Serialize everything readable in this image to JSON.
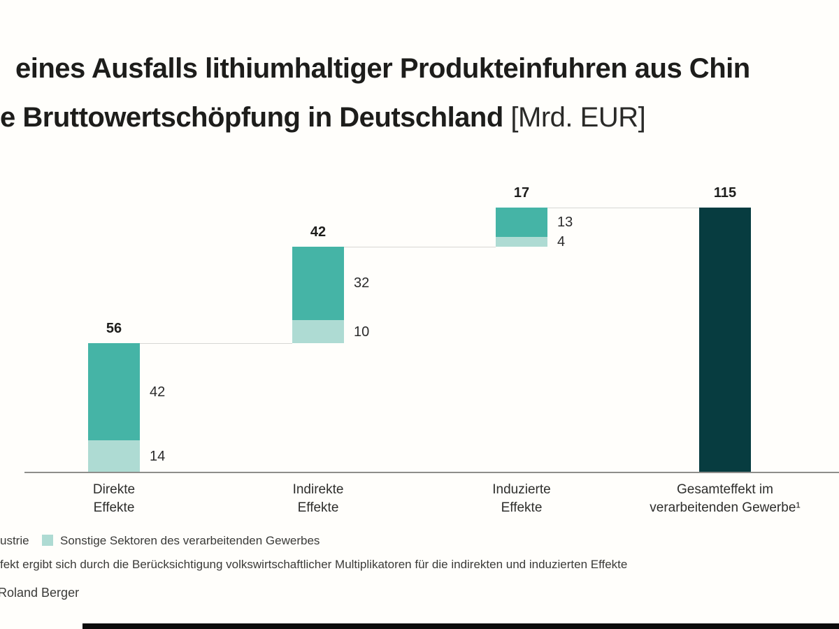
{
  "title": {
    "line1": "eines Ausfalls lithiumhaltiger Produkteinfuhren aus Chin",
    "line2_bold": "e Bruttowertschöpfung in Deutschland ",
    "line2_light": "[Mrd. EUR]"
  },
  "chart_data": {
    "type": "bar",
    "subtype": "waterfall-stacked",
    "unit": "Mrd. EUR",
    "categories": [
      "Direkte Effekte",
      "Indirekte Effekte",
      "Induzierte Effekte",
      "Gesamteffekt im verarbeitenden Gewerbe¹"
    ],
    "columns": [
      {
        "label_lines": [
          "Direkte",
          "Effekte"
        ],
        "base": 0,
        "total": 56,
        "segments": [
          {
            "series": "teal",
            "value": 42
          },
          {
            "series": "light",
            "value": 14
          }
        ]
      },
      {
        "label_lines": [
          "Indirekte",
          "Effekte"
        ],
        "base": 56,
        "total": 42,
        "segments": [
          {
            "series": "teal",
            "value": 32
          },
          {
            "series": "light",
            "value": 10
          }
        ]
      },
      {
        "label_lines": [
          "Induzierte",
          "Effekte"
        ],
        "base": 98,
        "total": 17,
        "segments": [
          {
            "series": "teal",
            "value": 13
          },
          {
            "series": "light",
            "value": 4
          }
        ]
      },
      {
        "label_lines": [
          "Gesamteffekt im",
          "verarbeitenden Gewerbe¹"
        ],
        "base": 0,
        "total": 115,
        "solid": true
      }
    ],
    "colors": {
      "segment_teal": "#45b4a6",
      "segment_light": "#aedbd3",
      "total_bar": "#073c40",
      "axis": "#8e8e8b",
      "connector": "#d7d7d4"
    },
    "legend": [
      {
        "label_fragment": "ustrie",
        "swatch_visible": false
      },
      {
        "label": "Sonstige Sektoren des verarbeitenden Gewerbes",
        "color": "#aedbd3",
        "swatch_visible": true
      }
    ],
    "ylim": [
      0,
      120
    ],
    "grid": false,
    "legend_position": "bottom-left"
  },
  "footnote": "fekt ergibt sich durch die Berücksichtigung volkswirtschaftlicher Multiplikatoren für die indirekten und induzierten Effekte",
  "source": "Roland Berger"
}
